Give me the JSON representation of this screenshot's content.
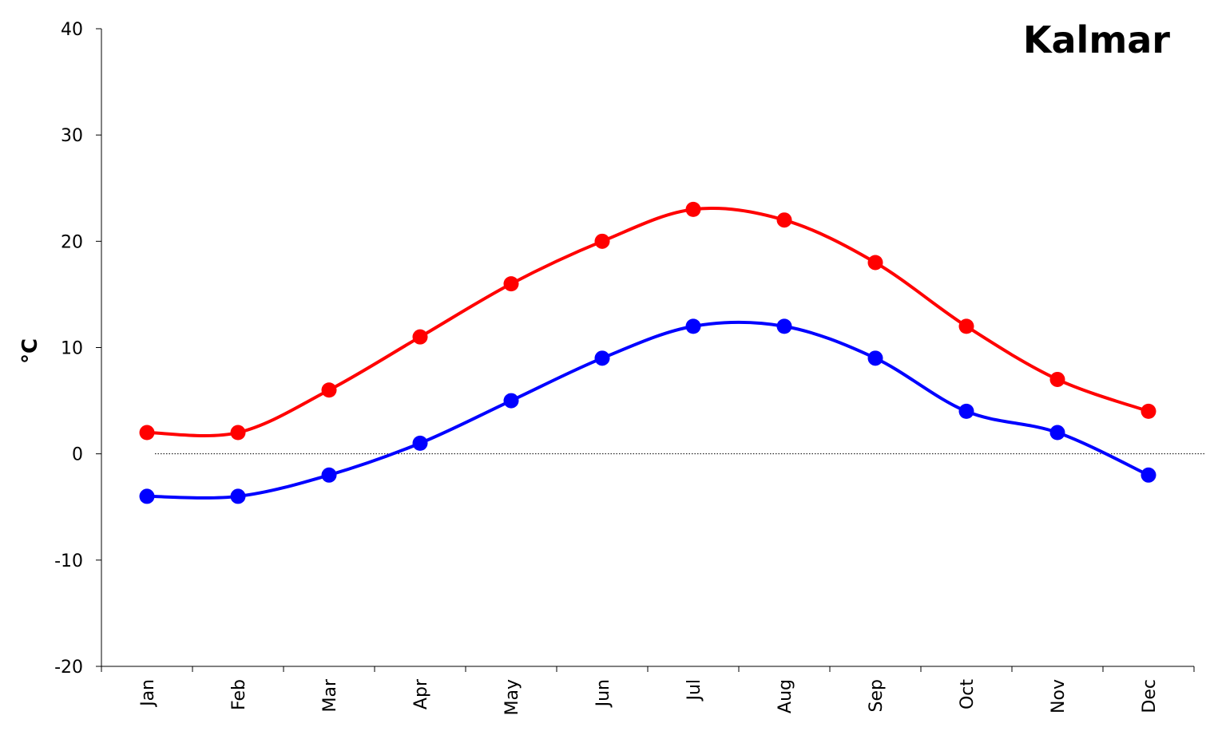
{
  "chart_data": {
    "type": "line",
    "title": "Kalmar",
    "xlabel": "",
    "ylabel": "°C",
    "categories": [
      "Jan",
      "Feb",
      "Mar",
      "Apr",
      "May",
      "Jun",
      "Jul",
      "Aug",
      "Sep",
      "Oct",
      "Nov",
      "Dec"
    ],
    "ylim": [
      -20,
      40
    ],
    "yticks": [
      "40",
      "30",
      "20",
      "10",
      "0",
      "-10",
      "-20"
    ],
    "grid": false,
    "reference_line_y": 0,
    "series": [
      {
        "values": [
          2,
          2,
          6,
          11,
          16,
          20,
          23,
          22,
          18,
          12,
          7,
          4
        ],
        "color": "#ff0000"
      },
      {
        "values": [
          -4,
          -4,
          -2,
          1,
          5,
          9,
          12,
          12,
          9,
          4,
          2,
          -2
        ],
        "color": "#0000ff"
      }
    ]
  }
}
